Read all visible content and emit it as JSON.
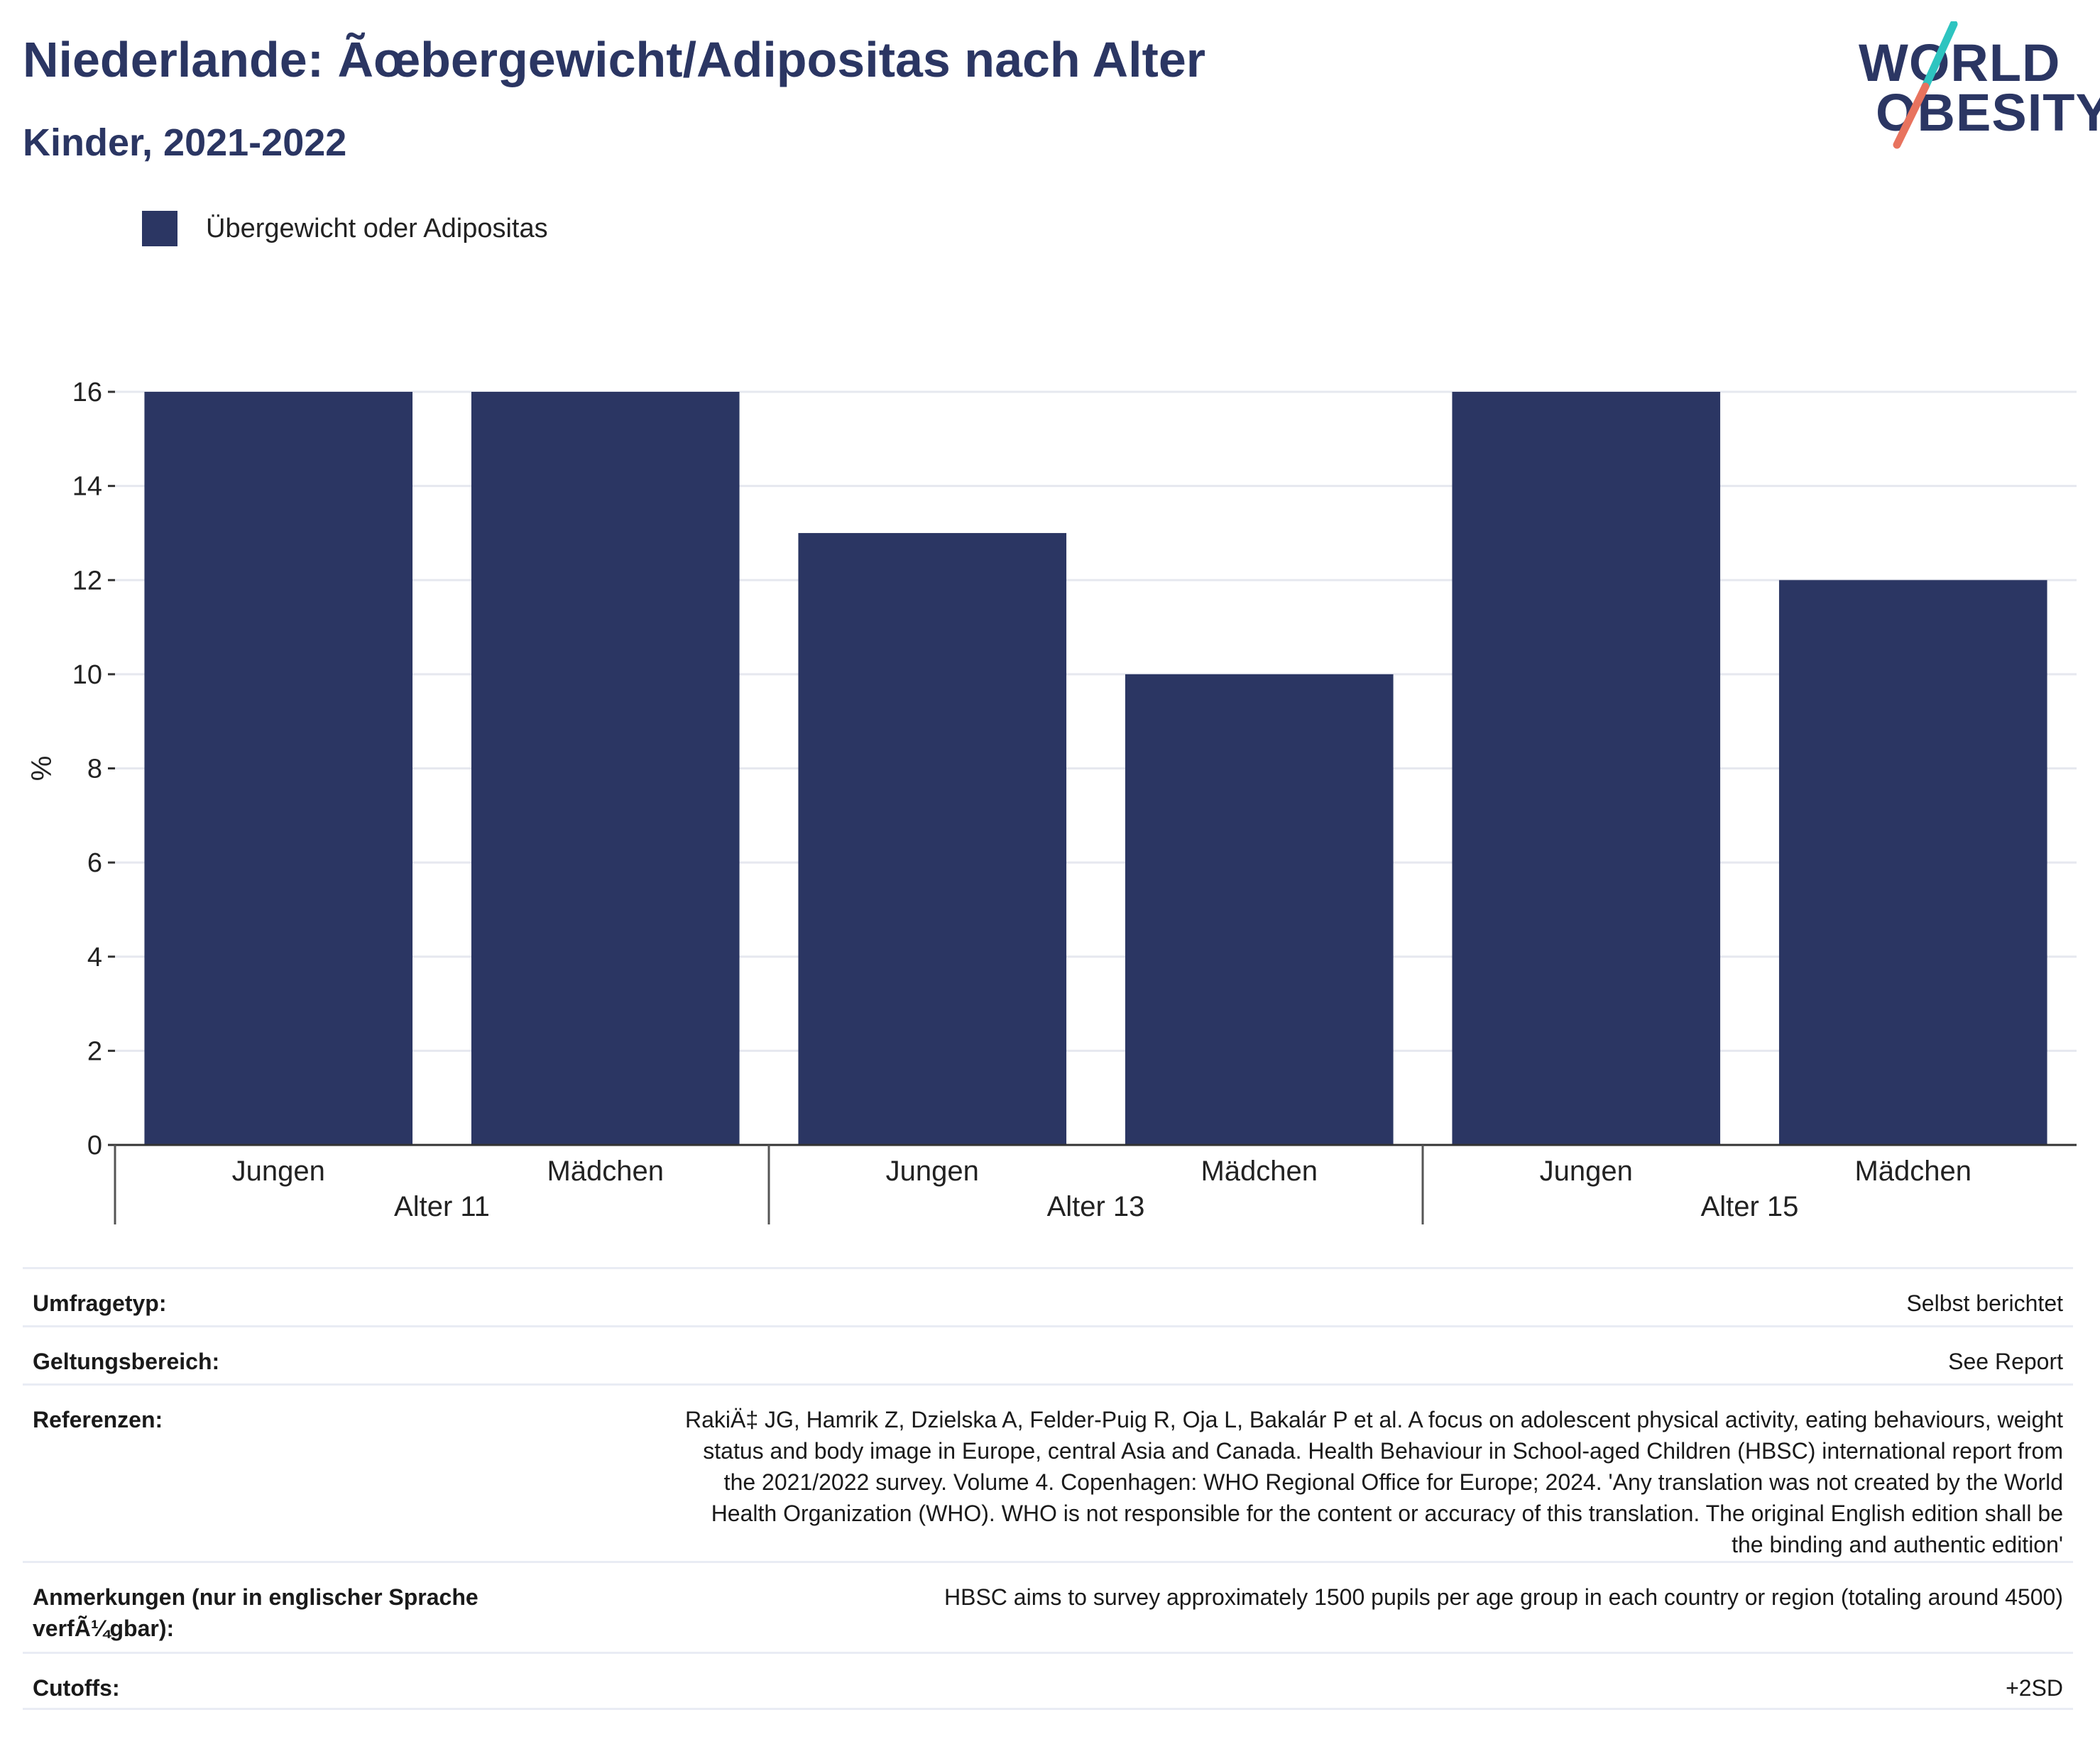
{
  "header": {
    "title": "Niederlande: Ãœbergewicht/Adipositas nach Alter",
    "subtitle": "Kinder, 2021-2022"
  },
  "logo": {
    "line1": "WORLD",
    "line2": "OBESITY",
    "colors": {
      "text": "#2b3663",
      "slash_top": "#2ec4c0",
      "slash_bottom": "#e8735e"
    }
  },
  "legend": {
    "label": "Übergewicht oder Adipositas",
    "color": "#2b3663"
  },
  "chart_data": {
    "type": "bar",
    "ylabel": "%",
    "ylim": [
      0,
      16
    ],
    "yticks": [
      0,
      2,
      4,
      6,
      8,
      10,
      12,
      14,
      16
    ],
    "grid": true,
    "legend_position": "top-left",
    "bar_color": "#2b3663",
    "groups": [
      {
        "label": "Alter 11",
        "categories": [
          "Jungen",
          "Mädchen"
        ],
        "values": [
          16,
          16
        ]
      },
      {
        "label": "Alter 13",
        "categories": [
          "Jungen",
          "Mädchen"
        ],
        "values": [
          13,
          10
        ]
      },
      {
        "label": "Alter 15",
        "categories": [
          "Jungen",
          "Mädchen"
        ],
        "values": [
          16,
          12
        ]
      }
    ],
    "series": [
      {
        "name": "Übergewicht oder Adipositas",
        "values": [
          16,
          16,
          13,
          10,
          16,
          12
        ]
      }
    ]
  },
  "meta": {
    "survey_type": {
      "label": "Umfragetyp:",
      "value": "Selbst berichtet"
    },
    "coverage": {
      "label": "Geltungsbereich:",
      "value": "See Report"
    },
    "references": {
      "label": "Referenzen:",
      "lines": [
        "RakiÄ‡ JG, Hamrik Z, Dzielska A, Felder-Puig R, Oja L, Bakalár P et al. A focus on adolescent physical activity, eating behaviours, weight",
        "status and body image in Europe, central Asia and Canada. Health Behaviour in School-aged Children (HBSC) international report from",
        "the 2021/2022 survey. Volume 4. Copenhagen: WHO Regional Office for Europe; 2024. 'Any translation was not created by the World",
        "Health Organization (WHO). WHO is not responsible for the content or accuracy of this translation. The original English edition shall be",
        "the binding and authentic edition'"
      ]
    },
    "notes": {
      "label_lines": [
        "Anmerkungen (nur in englischer Sprache",
        "verfÃ¼gbar):"
      ],
      "value": "HBSC aims to survey approximately 1500 pupils per age group in each country or region (totaling around 4500)"
    },
    "cutoffs": {
      "label": "Cutoffs:",
      "value": "+2SD"
    }
  }
}
